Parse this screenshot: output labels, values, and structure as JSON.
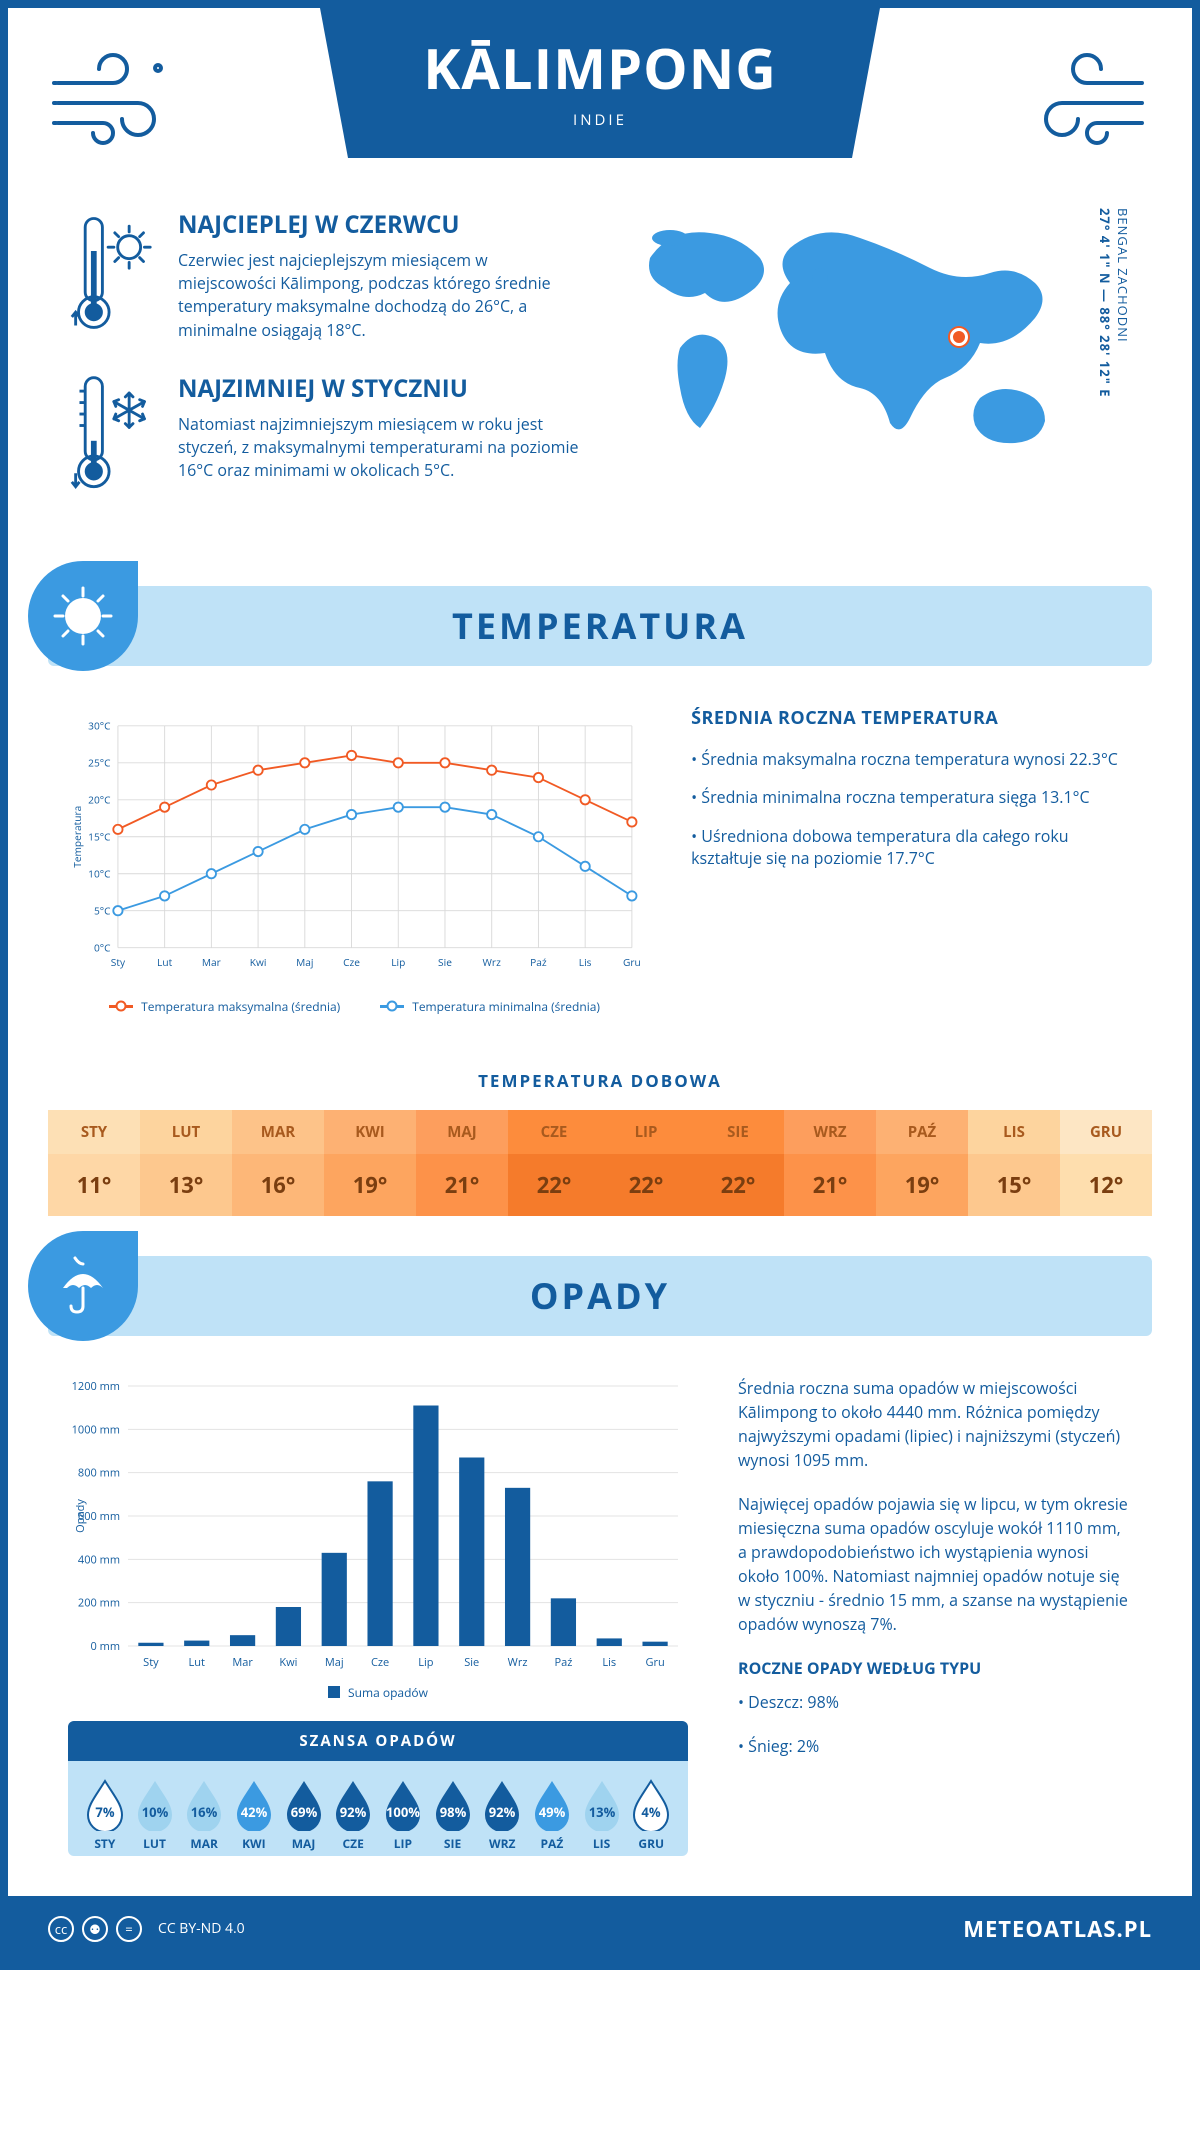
{
  "header": {
    "city": "KĀLIMPONG",
    "country": "INDIE"
  },
  "coords": {
    "text": "27° 4' 1\" N — 88° 28' 12\" E",
    "region": "BENGAL ZACHODNI"
  },
  "facts": {
    "hot": {
      "title": "NAJCIEPLEJ W CZERWCU",
      "body": "Czerwiec jest najcieplejszym miesiącem w miejscowości Kālimpong, podczas którego średnie temperatury maksymalne dochodzą do 26°C, a minimalne osiągają 18°C."
    },
    "cold": {
      "title": "NAJZIMNIEJ W STYCZNIU",
      "body": "Natomiast najzimniejszym miesiącem w roku jest styczeń, z maksymalnymi temperaturami na poziomie 16°C oraz minimami w okolicach 5°C."
    }
  },
  "sections": {
    "temp": "TEMPERATURA",
    "precip": "OPADY"
  },
  "months": [
    "Sty",
    "Lut",
    "Mar",
    "Kwi",
    "Maj",
    "Cze",
    "Lip",
    "Sie",
    "Wrz",
    "Paź",
    "Lis",
    "Gru"
  ],
  "months_upper": [
    "STY",
    "LUT",
    "MAR",
    "KWI",
    "MAJ",
    "CZE",
    "LIP",
    "SIE",
    "WRZ",
    "PAŹ",
    "LIS",
    "GRU"
  ],
  "temp_chart": {
    "type": "line",
    "ylabel": "Temperatura",
    "ylim": [
      0,
      30
    ],
    "yticks": [
      0,
      5,
      10,
      15,
      20,
      25,
      30
    ],
    "ytick_labels": [
      "0°C",
      "5°C",
      "10°C",
      "15°C",
      "20°C",
      "25°C",
      "30°C"
    ],
    "max": [
      16,
      19,
      22,
      24,
      25,
      26,
      25,
      25,
      24,
      23,
      20,
      17
    ],
    "min": [
      5,
      7,
      10,
      13,
      16,
      18,
      19,
      19,
      18,
      15,
      11,
      7
    ],
    "colors": {
      "max": "#f15a24",
      "min": "#3b9ae1",
      "grid": "#d9d9d9",
      "text": "#135c9e"
    },
    "legend": {
      "max": "Temperatura maksymalna (średnia)",
      "min": "Temperatura minimalna (średnia)"
    },
    "axis_fontsize": 11,
    "line_width": 2,
    "marker_size": 5
  },
  "temp_info": {
    "title": "ŚREDNIA ROCZNA TEMPERATURA",
    "b1": "• Średnia maksymalna roczna temperatura wynosi 22.3°C",
    "b2": "• Średnia minimalna roczna temperatura sięga 13.1°C",
    "b3": "• Uśredniona dobowa temperatura dla całego roku kształtuje się na poziomie 17.7°C"
  },
  "daily": {
    "title": "TEMPERATURA DOBOWA",
    "values": [
      "11°",
      "13°",
      "16°",
      "19°",
      "21°",
      "22°",
      "22°",
      "22°",
      "21°",
      "19°",
      "15°",
      "12°"
    ],
    "palette": {
      "head": [
        "#fde0b5",
        "#fdd49e",
        "#fdc389",
        "#fdb173",
        "#fd9e5d",
        "#fd8c3c",
        "#fd8c3c",
        "#fd8c3c",
        "#fd9e5d",
        "#fdb173",
        "#fdd49e",
        "#fde6c4"
      ],
      "body": [
        "#fed7a6",
        "#fdc88e",
        "#fdb778",
        "#fda55f",
        "#fd9249",
        "#f57b2b",
        "#f57b2b",
        "#f57b2b",
        "#fd9249",
        "#fda55f",
        "#fdc88e",
        "#fedeae"
      ]
    }
  },
  "precip_chart": {
    "type": "bar",
    "ylabel": "Opady",
    "ylim": [
      0,
      1200
    ],
    "yticks": [
      0,
      200,
      400,
      600,
      800,
      1000,
      1200
    ],
    "ytick_suffix": " mm",
    "values": [
      15,
      25,
      50,
      180,
      430,
      760,
      1110,
      870,
      730,
      220,
      35,
      20
    ],
    "bar_color": "#135c9e",
    "grid_color": "#e3e3e3",
    "legend": "Suma opadów",
    "bar_width": 0.55
  },
  "precip_info": {
    "p1": "Średnia roczna suma opadów w miejscowości Kālimpong to około 4440 mm. Różnica pomiędzy najwyższymi opadami (lipiec) i najniższymi (styczeń) wynosi 1095 mm.",
    "p2": "Najwięcej opadów pojawia się w lipcu, w tym okresie miesięczna suma opadów oscyluje wokół 1110 mm, a prawdopodobieństwo ich wystąpienia wynosi około 100%. Natomiast najmniej opadów notuje się w styczniu - średnio 15 mm, a szanse na wystąpienie opadów wynoszą 7%.",
    "type_title": "ROCZNE OPADY WEDŁUG TYPU",
    "t1": "• Deszcz: 98%",
    "t2": "• Śnieg: 2%"
  },
  "chance": {
    "title": "SZANSA OPADÓW",
    "values": [
      7,
      10,
      16,
      42,
      69,
      92,
      100,
      98,
      92,
      49,
      13,
      4
    ],
    "colors": {
      "low": "#9fd3ef",
      "mid": "#3b9ae1",
      "high": "#135c9e",
      "white": "#ffffff"
    }
  },
  "footer": {
    "license": "CC BY-ND 4.0",
    "brand": "METEOATLAS.PL"
  }
}
